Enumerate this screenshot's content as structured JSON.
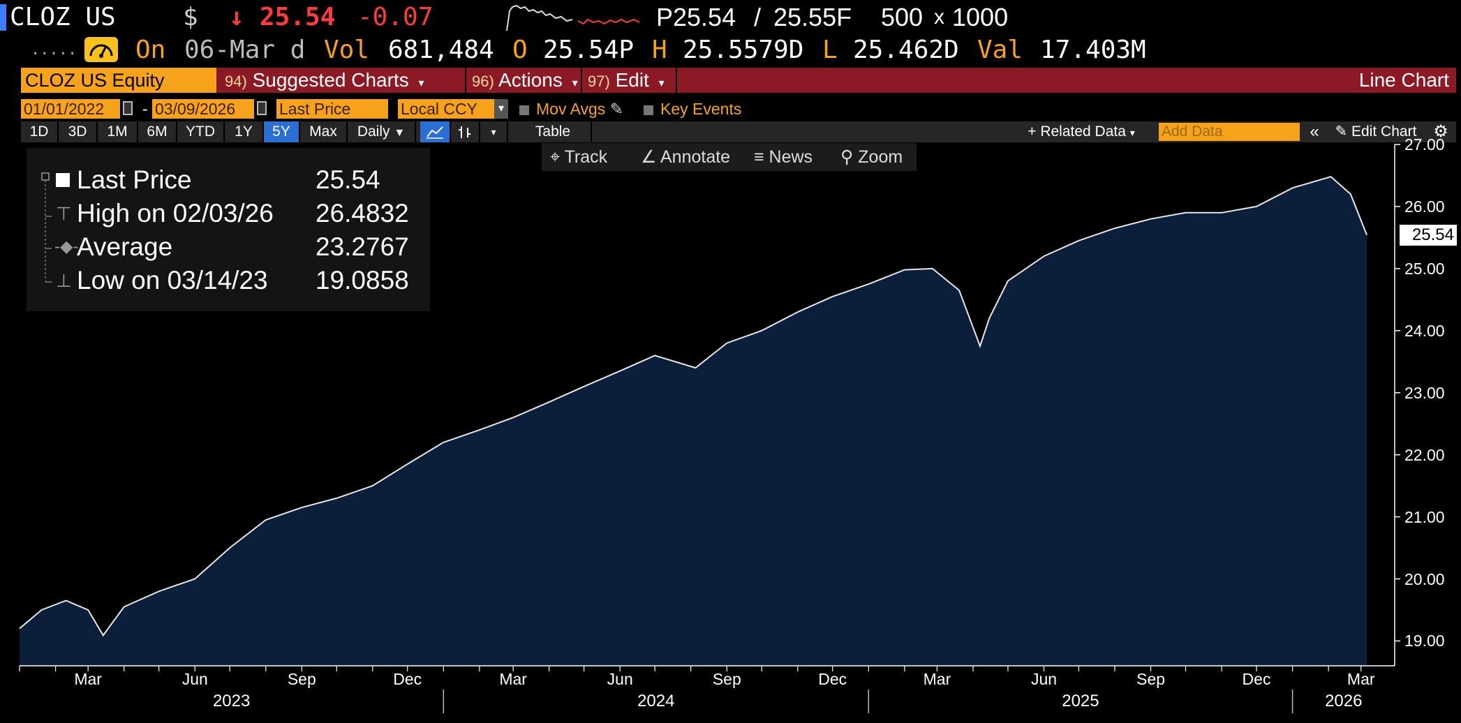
{
  "header": {
    "ticker": "CLOZ US",
    "currency": "$",
    "change_arrow": "↓",
    "price": "25.54",
    "change": "-0.07",
    "bid": "P25.54",
    "ask": "25.55F",
    "size_sep": "/",
    "size_bid": "500",
    "size_x": "x",
    "size_ask": "1000",
    "dots": ".....",
    "on": "On",
    "date": "06-Mar d",
    "vol_label": "Vol",
    "vol": "681,484",
    "open_label": "O",
    "open": "25.54P",
    "high_label": "H",
    "high": "25.5579D",
    "low_label": "L",
    "low": "25.462D",
    "val_label": "Val",
    "val": "17.403M"
  },
  "toolbar": {
    "security": "CLOZ US Equity",
    "suggested_num": "94)",
    "suggested": "Suggested Charts",
    "actions_num": "96)",
    "actions": "Actions",
    "edit_num": "97)",
    "edit": "Edit",
    "chart_type": "Line Chart"
  },
  "controls": {
    "start_date": "01/01/2022",
    "date_sep": "-",
    "end_date": "03/09/2026",
    "field": "Last Price",
    "currency": "Local CCY",
    "mov_avgs": "Mov Avgs",
    "key_events": "Key Events"
  },
  "ranges": {
    "r1d": "1D",
    "r3d": "3D",
    "r1m": "1M",
    "r6m": "6M",
    "rytd": "YTD",
    "r1y": "1Y",
    "r5y": "5Y",
    "rmax": "Max",
    "period": "Daily",
    "table": "Table",
    "related": "+ Related Data",
    "add_placeholder": "Add Data",
    "edit_chart": "Edit Chart"
  },
  "chart_tools": {
    "track": "Track",
    "annotate": "Annotate",
    "news": "News",
    "zoom": "Zoom"
  },
  "legend": {
    "last_label": "Last Price",
    "last_value": "25.54",
    "high_label": "High on 02/03/26",
    "high_value": "26.4832",
    "avg_label": "Average",
    "avg_value": "23.2767",
    "low_label": "Low on 03/14/23",
    "low_value": "19.0858"
  },
  "colors": {
    "background": "#000000",
    "area_fill": "#0b1f3a",
    "line": "#e8e8e8",
    "accent_orange": "#f7a21b",
    "toolbar_red": "#8c1a25",
    "negative": "#ff3b3b"
  },
  "chart_data": {
    "type": "area",
    "title": "",
    "series": [
      {
        "name": "Last Price",
        "x": [
          "2023-01-01",
          "2023-01-20",
          "2023-02-10",
          "2023-03-01",
          "2023-03-14",
          "2023-04-01",
          "2023-05-01",
          "2023-06-01",
          "2023-07-01",
          "2023-08-01",
          "2023-09-01",
          "2023-10-01",
          "2023-11-01",
          "2023-12-01",
          "2024-01-01",
          "2024-02-01",
          "2024-03-01",
          "2024-04-01",
          "2024-05-01",
          "2024-06-01",
          "2024-07-01",
          "2024-08-05",
          "2024-09-01",
          "2024-10-01",
          "2024-11-01",
          "2024-12-01",
          "2025-01-01",
          "2025-02-01",
          "2025-02-25",
          "2025-03-20",
          "2025-04-07",
          "2025-04-15",
          "2025-05-01",
          "2025-06-01",
          "2025-07-01",
          "2025-08-01",
          "2025-09-01",
          "2025-10-01",
          "2025-11-01",
          "2025-12-01",
          "2026-01-01",
          "2026-02-03",
          "2026-02-20",
          "2026-03-06"
        ],
        "y": [
          19.2,
          19.5,
          19.65,
          19.5,
          19.09,
          19.55,
          19.8,
          20.0,
          20.5,
          20.95,
          21.15,
          21.3,
          21.5,
          21.85,
          22.2,
          22.4,
          22.6,
          22.85,
          23.1,
          23.35,
          23.6,
          23.4,
          23.8,
          24.0,
          24.3,
          24.55,
          24.75,
          24.98,
          25.0,
          24.65,
          23.75,
          24.2,
          24.8,
          25.2,
          25.45,
          25.65,
          25.8,
          25.9,
          25.9,
          26.0,
          26.3,
          26.48,
          26.2,
          25.54
        ]
      }
    ],
    "yticks": [
      "19.00",
      "20.00",
      "21.00",
      "22.00",
      "23.00",
      "24.00",
      "25.00",
      "26.00",
      "27.00"
    ],
    "ylim": [
      18.6,
      27.0
    ],
    "xlim": [
      "2023-01-01",
      "2026-03-30"
    ],
    "x_month_ticks": [
      "Mar",
      "Jun",
      "Sep",
      "Dec",
      "Mar",
      "Jun",
      "Sep",
      "Dec",
      "Mar",
      "Jun",
      "Sep",
      "Dec",
      "Mar"
    ],
    "x_year_labels": [
      "2023",
      "2024",
      "2025",
      "2026"
    ],
    "last_value_label": "25.54",
    "grid": false,
    "legend_position": "top-left"
  }
}
